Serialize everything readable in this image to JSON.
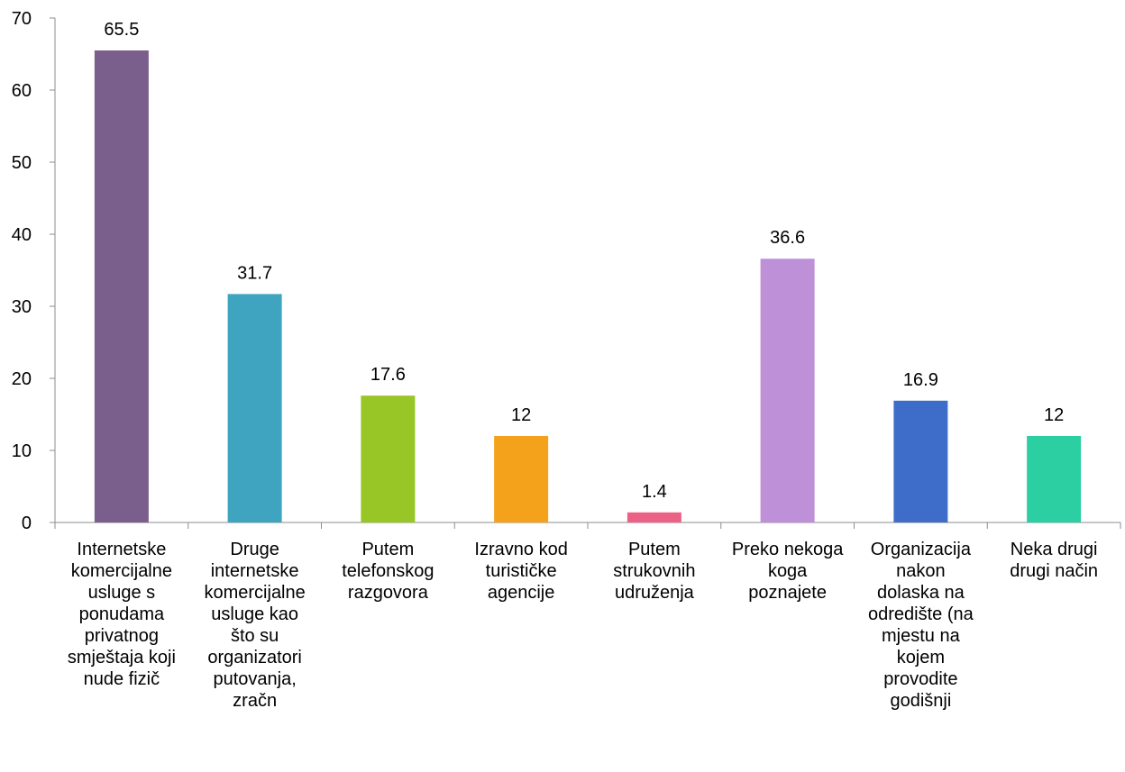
{
  "chart_data": {
    "type": "bar",
    "title": "",
    "xlabel": "",
    "ylabel": "",
    "ylim": [
      0,
      70
    ],
    "yticks": [
      0,
      10,
      20,
      30,
      40,
      50,
      60,
      70
    ],
    "grid": false,
    "legend": "none",
    "categories": [
      "Internetske\nkomercijalne\nusluge s\nponudama\nprivatnog\nsmještaja koji\nnude fizič",
      "Druge\ninternetske\nkomercijalne\nusluge kao\nšto su\norganizatori\nputovanja,\nzračn",
      "Putem\ntelefonskog\nrazgovora",
      "Izravno kod\nturističke\nagencije",
      "Putem\nstrukovnih\nudruženja",
      "Preko nekoga\nkoga\npoznajete",
      "Organizacija\nnakon\ndolaska na\nodredište (na\nmjestu na\nkojem\nprovodite\ngodišnji",
      "Neka drugi\ndrugi način"
    ],
    "values": [
      65.5,
      31.7,
      17.6,
      12,
      1.4,
      36.6,
      16.9,
      12
    ],
    "data_labels": [
      "65.5",
      "31.7",
      "17.6",
      "12",
      "1.4",
      "36.6",
      "16.9",
      "12"
    ],
    "colors": [
      "#7a5e8c",
      "#3fa4bf",
      "#97c626",
      "#f4a21b",
      "#ec6286",
      "#bd90d8",
      "#3d6cc9",
      "#2bcfa1"
    ]
  }
}
